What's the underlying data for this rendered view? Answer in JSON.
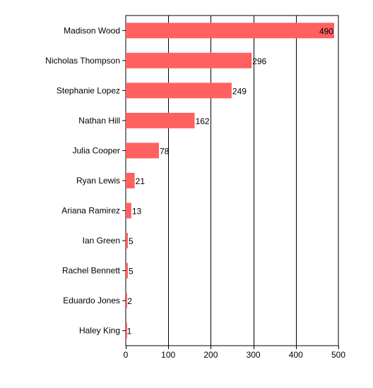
{
  "chart_data": {
    "type": "bar",
    "orientation": "horizontal",
    "title": "",
    "xlabel": "",
    "ylabel": "",
    "categories": [
      "Madison Wood",
      "Nicholas Thompson",
      "Stephanie Lopez",
      "Nathan Hill",
      "Julia Cooper",
      "Ryan Lewis",
      "Ariana Ramirez",
      "Ian Green",
      "Rachel Bennett",
      "Eduardo Jones",
      "Haley King"
    ],
    "values": [
      490,
      296,
      249,
      162,
      78,
      21,
      13,
      5,
      5,
      2,
      1
    ],
    "xlim": [
      0,
      500
    ],
    "xticks": [
      0,
      100,
      200,
      300,
      400,
      500
    ],
    "grid": "vertical",
    "legend": "none",
    "bar_color": "#ff6060",
    "grid_color": "#000000"
  }
}
